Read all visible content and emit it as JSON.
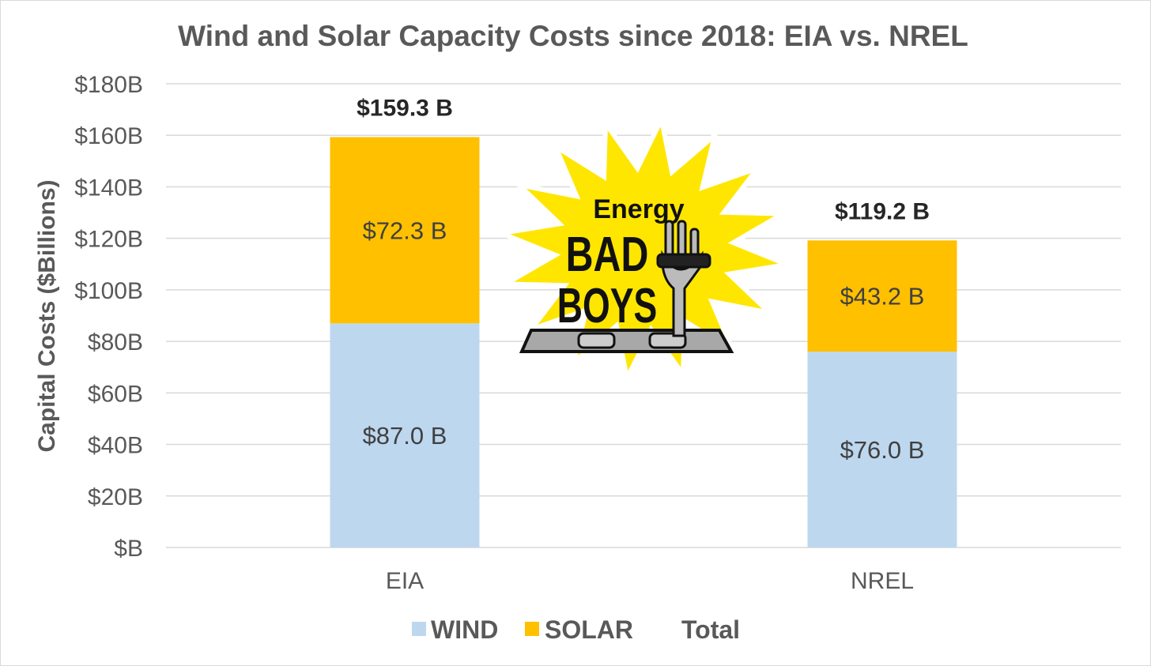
{
  "chart_data": {
    "type": "bar",
    "stacked": true,
    "title": "Wind and Solar Capacity Costs since 2018: EIA vs. NREL",
    "xlabel": "",
    "ylabel": "Capital Costs ($Billions)",
    "ylim": [
      0,
      180
    ],
    "yticks": [
      0,
      20,
      40,
      60,
      80,
      100,
      120,
      140,
      160,
      180
    ],
    "ytick_labels": [
      "$B",
      "$20B",
      "$40B",
      "$60B",
      "$80B",
      "$100B",
      "$120B",
      "$140B",
      "$160B",
      "$180B"
    ],
    "grid": true,
    "categories": [
      "EIA",
      "NREL"
    ],
    "series": [
      {
        "name": "WIND",
        "color": "#BDD7EE",
        "values": [
          87.0,
          76.0
        ],
        "labels": [
          "$87.0 B",
          "$76.0 B"
        ]
      },
      {
        "name": "SOLAR",
        "color": "#FFC000",
        "values": [
          72.3,
          43.2
        ],
        "labels": [
          "$72.3 B",
          "$43.2 B"
        ]
      }
    ],
    "totals": {
      "name": "Total",
      "values": [
        159.3,
        119.2
      ],
      "labels": [
        "$159.3 B",
        "$119.2 B"
      ]
    },
    "legend": {
      "placement": "bottom",
      "entries": [
        "WIND",
        "SOLAR",
        "Total"
      ]
    }
  },
  "logo": {
    "lines": [
      "Energy",
      "BAD",
      "BOYS"
    ]
  }
}
